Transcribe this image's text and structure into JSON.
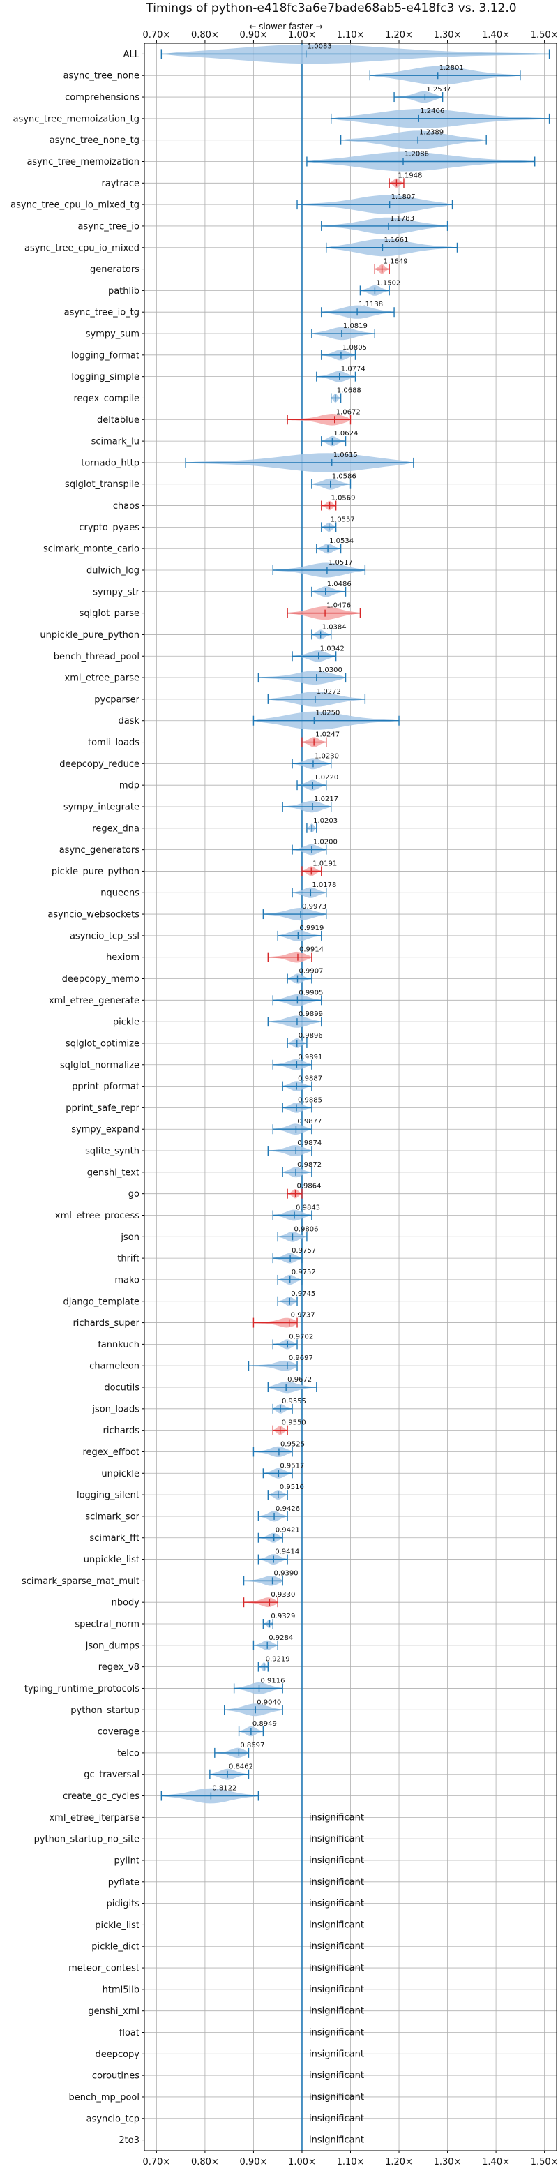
{
  "chart_data": {
    "type": "violin",
    "title": "Timings of python-e418fc3a6e7bade68ab5-e418fc3 vs. 3.12.0",
    "direction_label": "← slower   faster →",
    "xlim": [
      0.675,
      1.525
    ],
    "reference_x": 1.0,
    "xticks": [
      0.7,
      0.8,
      0.9,
      1.0,
      1.1,
      1.2,
      1.3,
      1.4,
      1.5
    ],
    "xtick_labels": [
      "0.70×",
      "0.80×",
      "0.90×",
      "1.00×",
      "1.10×",
      "1.20×",
      "1.30×",
      "1.40×",
      "1.50×"
    ],
    "grid": true,
    "colors": {
      "normal": "#1f77b4",
      "normal_fill": "#a8c8e6",
      "outlier": "#d62728",
      "outlier_fill": "#f4a6a6"
    },
    "insignificant_text": "insignificant",
    "benchmarks": [
      {
        "name": "ALL",
        "value": 1.0083,
        "min": 0.71,
        "max": 1.51,
        "label": "1.0083"
      },
      {
        "name": "async_tree_none",
        "value": 1.2801,
        "min": 1.14,
        "max": 1.45,
        "label": "1.2801"
      },
      {
        "name": "comprehensions",
        "value": 1.2537,
        "min": 1.19,
        "max": 1.29,
        "label": "1.2537"
      },
      {
        "name": "async_tree_memoization_tg",
        "value": 1.2406,
        "min": 1.06,
        "max": 1.51,
        "label": "1.2406"
      },
      {
        "name": "async_tree_none_tg",
        "value": 1.2389,
        "min": 1.08,
        "max": 1.38,
        "label": "1.2389"
      },
      {
        "name": "async_tree_memoization",
        "value": 1.2086,
        "min": 1.01,
        "max": 1.48,
        "label": "1.2086"
      },
      {
        "name": "raytrace",
        "value": 1.1948,
        "min": 1.18,
        "max": 1.21,
        "label": "1.1948",
        "outlier": true
      },
      {
        "name": "async_tree_cpu_io_mixed_tg",
        "value": 1.1807,
        "min": 0.99,
        "max": 1.31,
        "label": "1.1807"
      },
      {
        "name": "async_tree_io",
        "value": 1.1783,
        "min": 1.04,
        "max": 1.3,
        "label": "1.1783"
      },
      {
        "name": "async_tree_cpu_io_mixed",
        "value": 1.1661,
        "min": 1.05,
        "max": 1.32,
        "label": "1.1661"
      },
      {
        "name": "generators",
        "value": 1.1649,
        "min": 1.15,
        "max": 1.18,
        "label": "1.1649",
        "outlier": true
      },
      {
        "name": "pathlib",
        "value": 1.1502,
        "min": 1.12,
        "max": 1.18,
        "label": "1.1502"
      },
      {
        "name": "async_tree_io_tg",
        "value": 1.1138,
        "min": 1.04,
        "max": 1.19,
        "label": "1.1138"
      },
      {
        "name": "sympy_sum",
        "value": 1.0819,
        "min": 1.02,
        "max": 1.15,
        "label": "1.0819"
      },
      {
        "name": "logging_format",
        "value": 1.0805,
        "min": 1.04,
        "max": 1.11,
        "label": "1.0805"
      },
      {
        "name": "logging_simple",
        "value": 1.0774,
        "min": 1.03,
        "max": 1.11,
        "label": "1.0774"
      },
      {
        "name": "regex_compile",
        "value": 1.0688,
        "min": 1.06,
        "max": 1.08,
        "label": "1.0688"
      },
      {
        "name": "deltablue",
        "value": 1.0672,
        "min": 0.97,
        "max": 1.1,
        "label": "1.0672",
        "outlier": true
      },
      {
        "name": "scimark_lu",
        "value": 1.0624,
        "min": 1.04,
        "max": 1.09,
        "label": "1.0624"
      },
      {
        "name": "tornado_http",
        "value": 1.0615,
        "min": 0.76,
        "max": 1.23,
        "label": "1.0615"
      },
      {
        "name": "sqlglot_transpile",
        "value": 1.0586,
        "min": 1.02,
        "max": 1.1,
        "label": "1.0586"
      },
      {
        "name": "chaos",
        "value": 1.0569,
        "min": 1.04,
        "max": 1.07,
        "label": "1.0569",
        "outlier": true
      },
      {
        "name": "crypto_pyaes",
        "value": 1.0557,
        "min": 1.04,
        "max": 1.07,
        "label": "1.0557"
      },
      {
        "name": "scimark_monte_carlo",
        "value": 1.0534,
        "min": 1.03,
        "max": 1.08,
        "label": "1.0534"
      },
      {
        "name": "dulwich_log",
        "value": 1.0517,
        "min": 0.94,
        "max": 1.13,
        "label": "1.0517"
      },
      {
        "name": "sympy_str",
        "value": 1.0486,
        "min": 1.02,
        "max": 1.09,
        "label": "1.0486"
      },
      {
        "name": "sqlglot_parse",
        "value": 1.0476,
        "min": 0.97,
        "max": 1.12,
        "label": "1.0476",
        "outlier": true
      },
      {
        "name": "unpickle_pure_python",
        "value": 1.0384,
        "min": 1.02,
        "max": 1.06,
        "label": "1.0384"
      },
      {
        "name": "bench_thread_pool",
        "value": 1.0342,
        "min": 0.98,
        "max": 1.07,
        "label": "1.0342"
      },
      {
        "name": "xml_etree_parse",
        "value": 1.03,
        "min": 0.91,
        "max": 1.09,
        "label": "1.0300"
      },
      {
        "name": "pycparser",
        "value": 1.0272,
        "min": 0.93,
        "max": 1.13,
        "label": "1.0272"
      },
      {
        "name": "dask",
        "value": 1.025,
        "min": 0.9,
        "max": 1.2,
        "label": "1.0250"
      },
      {
        "name": "tomli_loads",
        "value": 1.0247,
        "min": 1.0,
        "max": 1.05,
        "label": "1.0247",
        "outlier": true
      },
      {
        "name": "deepcopy_reduce",
        "value": 1.023,
        "min": 0.98,
        "max": 1.06,
        "label": "1.0230"
      },
      {
        "name": "mdp",
        "value": 1.022,
        "min": 0.99,
        "max": 1.05,
        "label": "1.0220"
      },
      {
        "name": "sympy_integrate",
        "value": 1.0217,
        "min": 0.96,
        "max": 1.06,
        "label": "1.0217"
      },
      {
        "name": "regex_dna",
        "value": 1.0203,
        "min": 1.01,
        "max": 1.03,
        "label": "1.0203"
      },
      {
        "name": "async_generators",
        "value": 1.02,
        "min": 0.98,
        "max": 1.05,
        "label": "1.0200"
      },
      {
        "name": "pickle_pure_python",
        "value": 1.0191,
        "min": 1.0,
        "max": 1.04,
        "label": "1.0191",
        "outlier": true
      },
      {
        "name": "nqueens",
        "value": 1.0178,
        "min": 0.98,
        "max": 1.05,
        "label": "1.0178"
      },
      {
        "name": "asyncio_websockets",
        "value": 0.9973,
        "min": 0.92,
        "max": 1.05,
        "label": "0.9973"
      },
      {
        "name": "asyncio_tcp_ssl",
        "value": 0.9919,
        "min": 0.95,
        "max": 1.04,
        "label": "0.9919"
      },
      {
        "name": "hexiom",
        "value": 0.9914,
        "min": 0.93,
        "max": 1.02,
        "label": "0.9914",
        "outlier": true
      },
      {
        "name": "deepcopy_memo",
        "value": 0.9907,
        "min": 0.97,
        "max": 1.02,
        "label": "0.9907"
      },
      {
        "name": "xml_etree_generate",
        "value": 0.9905,
        "min": 0.94,
        "max": 1.04,
        "label": "0.9905"
      },
      {
        "name": "pickle",
        "value": 0.9899,
        "min": 0.93,
        "max": 1.04,
        "label": "0.9899"
      },
      {
        "name": "sqlglot_optimize",
        "value": 0.9896,
        "min": 0.97,
        "max": 1.01,
        "label": "0.9896"
      },
      {
        "name": "sqlglot_normalize",
        "value": 0.9891,
        "min": 0.94,
        "max": 1.02,
        "label": "0.9891"
      },
      {
        "name": "pprint_pformat",
        "value": 0.9887,
        "min": 0.96,
        "max": 1.02,
        "label": "0.9887"
      },
      {
        "name": "pprint_safe_repr",
        "value": 0.9885,
        "min": 0.96,
        "max": 1.02,
        "label": "0.9885"
      },
      {
        "name": "sympy_expand",
        "value": 0.9877,
        "min": 0.94,
        "max": 1.02,
        "label": "0.9877"
      },
      {
        "name": "sqlite_synth",
        "value": 0.9874,
        "min": 0.93,
        "max": 1.02,
        "label": "0.9874"
      },
      {
        "name": "genshi_text",
        "value": 0.9872,
        "min": 0.96,
        "max": 1.02,
        "label": "0.9872"
      },
      {
        "name": "go",
        "value": 0.9864,
        "min": 0.97,
        "max": 1.0,
        "label": "0.9864",
        "outlier": true
      },
      {
        "name": "xml_etree_process",
        "value": 0.9843,
        "min": 0.94,
        "max": 1.02,
        "label": "0.9843"
      },
      {
        "name": "json",
        "value": 0.9806,
        "min": 0.95,
        "max": 1.01,
        "label": "0.9806"
      },
      {
        "name": "thrift",
        "value": 0.9757,
        "min": 0.94,
        "max": 1.0,
        "label": "0.9757"
      },
      {
        "name": "mako",
        "value": 0.9752,
        "min": 0.95,
        "max": 1.0,
        "label": "0.9752"
      },
      {
        "name": "django_template",
        "value": 0.9745,
        "min": 0.95,
        "max": 0.99,
        "label": "0.9745"
      },
      {
        "name": "richards_super",
        "value": 0.9737,
        "min": 0.9,
        "max": 0.99,
        "label": "0.9737",
        "outlier": true
      },
      {
        "name": "fannkuch",
        "value": 0.9702,
        "min": 0.94,
        "max": 0.99,
        "label": "0.9702"
      },
      {
        "name": "chameleon",
        "value": 0.9697,
        "min": 0.89,
        "max": 0.99,
        "label": "0.9697"
      },
      {
        "name": "docutils",
        "value": 0.9672,
        "min": 0.93,
        "max": 1.03,
        "label": "0.9672"
      },
      {
        "name": "json_loads",
        "value": 0.9555,
        "min": 0.94,
        "max": 0.98,
        "label": "0.9555"
      },
      {
        "name": "richards",
        "value": 0.955,
        "min": 0.94,
        "max": 0.97,
        "label": "0.9550",
        "outlier": true
      },
      {
        "name": "regex_effbot",
        "value": 0.9525,
        "min": 0.9,
        "max": 0.98,
        "label": "0.9525"
      },
      {
        "name": "unpickle",
        "value": 0.9517,
        "min": 0.92,
        "max": 0.98,
        "label": "0.9517"
      },
      {
        "name": "logging_silent",
        "value": 0.951,
        "min": 0.93,
        "max": 0.97,
        "label": "0.9510"
      },
      {
        "name": "scimark_sor",
        "value": 0.9426,
        "min": 0.91,
        "max": 0.97,
        "label": "0.9426"
      },
      {
        "name": "scimark_fft",
        "value": 0.9421,
        "min": 0.91,
        "max": 0.96,
        "label": "0.9421"
      },
      {
        "name": "unpickle_list",
        "value": 0.9414,
        "min": 0.91,
        "max": 0.97,
        "label": "0.9414"
      },
      {
        "name": "scimark_sparse_mat_mult",
        "value": 0.939,
        "min": 0.88,
        "max": 0.96,
        "label": "0.9390"
      },
      {
        "name": "nbody",
        "value": 0.933,
        "min": 0.88,
        "max": 0.95,
        "label": "0.9330",
        "outlier": true
      },
      {
        "name": "spectral_norm",
        "value": 0.9329,
        "min": 0.92,
        "max": 0.94,
        "label": "0.9329"
      },
      {
        "name": "json_dumps",
        "value": 0.9284,
        "min": 0.9,
        "max": 0.95,
        "label": "0.9284"
      },
      {
        "name": "regex_v8",
        "value": 0.9219,
        "min": 0.91,
        "max": 0.93,
        "label": "0.9219"
      },
      {
        "name": "typing_runtime_protocols",
        "value": 0.9116,
        "min": 0.86,
        "max": 0.96,
        "label": "0.9116"
      },
      {
        "name": "python_startup",
        "value": 0.904,
        "min": 0.84,
        "max": 0.96,
        "label": "0.9040"
      },
      {
        "name": "coverage",
        "value": 0.8949,
        "min": 0.87,
        "max": 0.92,
        "label": "0.8949"
      },
      {
        "name": "telco",
        "value": 0.8697,
        "min": 0.82,
        "max": 0.89,
        "label": "0.8697"
      },
      {
        "name": "gc_traversal",
        "value": 0.8462,
        "min": 0.81,
        "max": 0.89,
        "label": "0.8462"
      },
      {
        "name": "create_gc_cycles",
        "value": 0.8122,
        "min": 0.71,
        "max": 0.91,
        "label": "0.8122"
      },
      {
        "name": "xml_etree_iterparse",
        "insignificant": true
      },
      {
        "name": "python_startup_no_site",
        "insignificant": true
      },
      {
        "name": "pylint",
        "insignificant": true
      },
      {
        "name": "pyflate",
        "insignificant": true
      },
      {
        "name": "pidigits",
        "insignificant": true
      },
      {
        "name": "pickle_list",
        "insignificant": true
      },
      {
        "name": "pickle_dict",
        "insignificant": true
      },
      {
        "name": "meteor_contest",
        "insignificant": true
      },
      {
        "name": "html5lib",
        "insignificant": true
      },
      {
        "name": "genshi_xml",
        "insignificant": true
      },
      {
        "name": "float",
        "insignificant": true
      },
      {
        "name": "deepcopy",
        "insignificant": true
      },
      {
        "name": "coroutines",
        "insignificant": true
      },
      {
        "name": "bench_mp_pool",
        "insignificant": true
      },
      {
        "name": "asyncio_tcp",
        "insignificant": true
      },
      {
        "name": "2to3",
        "insignificant": true
      }
    ]
  }
}
